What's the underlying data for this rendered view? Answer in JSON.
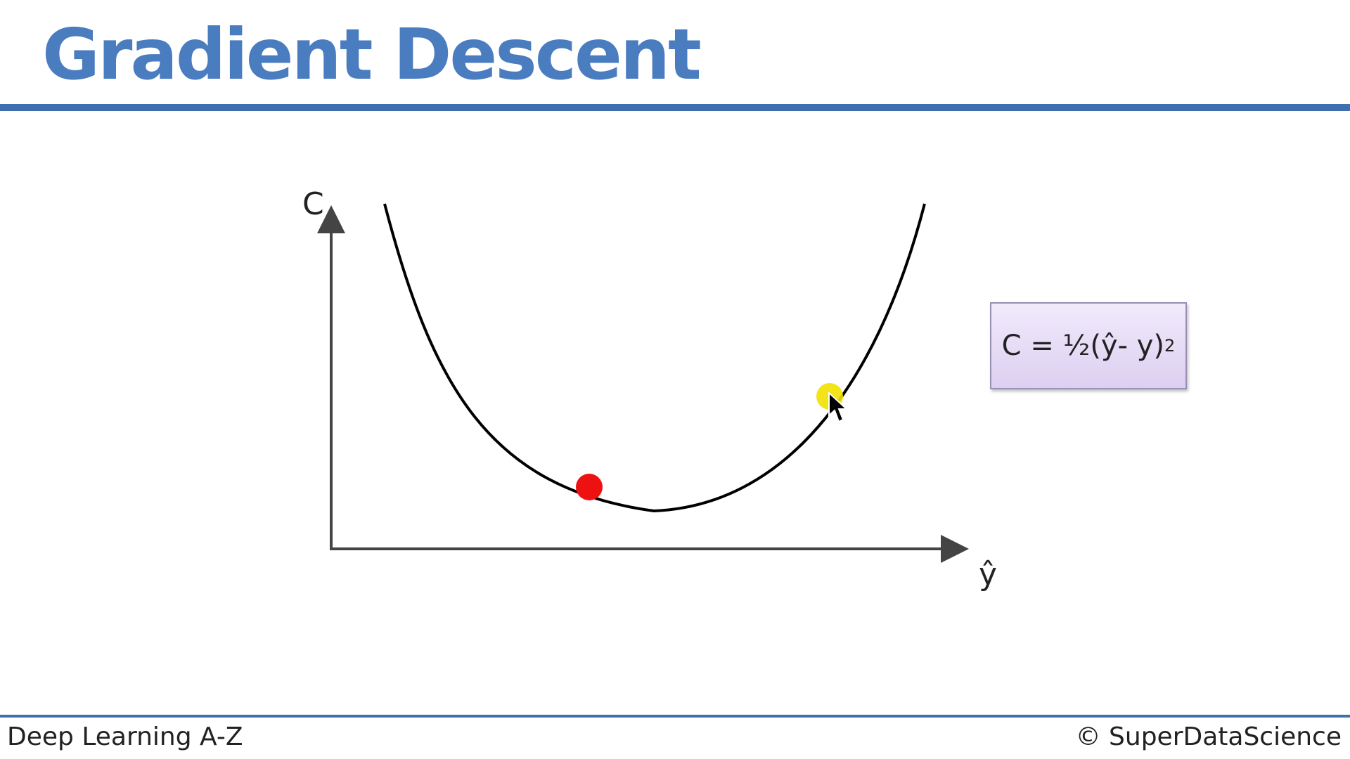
{
  "slide": {
    "title": "Gradient Descent"
  },
  "diagram": {
    "y_axis_label": "C",
    "x_axis_label": "ŷ",
    "curve_color": "#000000",
    "ball_color": "#ee1111"
  },
  "formula": {
    "text_main": "C = ½(ŷ- y)",
    "exponent": "2"
  },
  "footer": {
    "left_text": "Deep Learning A-Z",
    "right_text": "© SuperDataScience"
  },
  "colors": {
    "accent": "#3f6fae",
    "title": "#4a7cc0",
    "cursor_highlight": "#f2e000",
    "formula_box": "#e4d9f4"
  },
  "icons": {
    "cursor": "mouse-pointer-icon"
  }
}
